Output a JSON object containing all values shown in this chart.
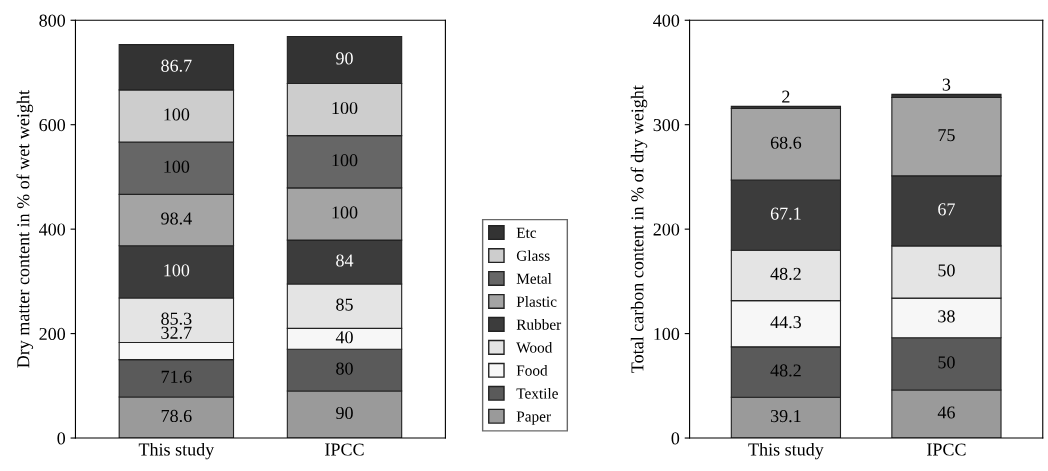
{
  "chart_data": [
    {
      "type": "bar",
      "stacked": true,
      "ylabel": "Dry matter content in % of wet weight",
      "categories": [
        "This study",
        "IPCC"
      ],
      "ylim": [
        0,
        800
      ],
      "yticks": [
        0,
        200,
        400,
        600,
        800
      ],
      "grid": false,
      "legend": "right",
      "data_labels": true,
      "series": [
        {
          "name": "Paper",
          "color": "#9a9a9a",
          "values": [
            78.6,
            90
          ]
        },
        {
          "name": "Textile",
          "color": "#5a5a5a",
          "values": [
            71.6,
            80
          ]
        },
        {
          "name": "Food",
          "color": "#f7f7f7",
          "values": [
            32.7,
            40
          ]
        },
        {
          "name": "Wood",
          "color": "#e4e4e4",
          "values": [
            85.3,
            85
          ]
        },
        {
          "name": "Rubber",
          "color": "#3c3c3c",
          "values": [
            100,
            84
          ]
        },
        {
          "name": "Plastic",
          "color": "#a4a4a4",
          "values": [
            98.4,
            100
          ]
        },
        {
          "name": "Metal",
          "color": "#666666",
          "values": [
            100,
            100
          ]
        },
        {
          "name": "Glass",
          "color": "#cdcdcd",
          "values": [
            100,
            100
          ]
        },
        {
          "name": "Etc",
          "color": "#333333",
          "values": [
            86.7,
            90
          ]
        }
      ]
    },
    {
      "type": "bar",
      "stacked": true,
      "ylabel": "Total carbon content in % of dry weight",
      "categories": [
        "This study",
        "IPCC"
      ],
      "ylim": [
        0,
        400
      ],
      "yticks": [
        0,
        100,
        200,
        300,
        400
      ],
      "grid": false,
      "legend": false,
      "series": [
        {
          "color": "#9a9a9a",
          "values": [
            39.1,
            46
          ],
          "value_labels": [
            "39.1",
            "46"
          ]
        },
        {
          "color": "#5a5a5a",
          "values": [
            48.2,
            50
          ],
          "value_labels": [
            "48.2",
            "50"
          ]
        },
        {
          "color": "#f7f7f7",
          "values": [
            44.3,
            38
          ],
          "value_labels": [
            "44.3",
            "38"
          ]
        },
        {
          "color": "#e4e4e4",
          "values": [
            48.2,
            50
          ],
          "value_labels": [
            "48.2",
            "50"
          ]
        },
        {
          "color": "#3c3c3c",
          "values": [
            67.1,
            67
          ],
          "value_labels": [
            "67.1",
            "67"
          ]
        },
        {
          "color": "#a4a4a4",
          "values": [
            68.6,
            75
          ],
          "value_labels": [
            "68.6",
            "75"
          ]
        },
        {
          "color": "#666666",
          "values": [
            0,
            0
          ],
          "value_labels": [
            null,
            null
          ]
        },
        {
          "color": "#cdcdcd",
          "values": [
            0,
            0
          ],
          "value_labels": [
            null,
            null
          ]
        },
        {
          "color": "#333333",
          "values": [
            2,
            3
          ],
          "value_labels": [
            "2",
            "3"
          ]
        }
      ]
    }
  ]
}
